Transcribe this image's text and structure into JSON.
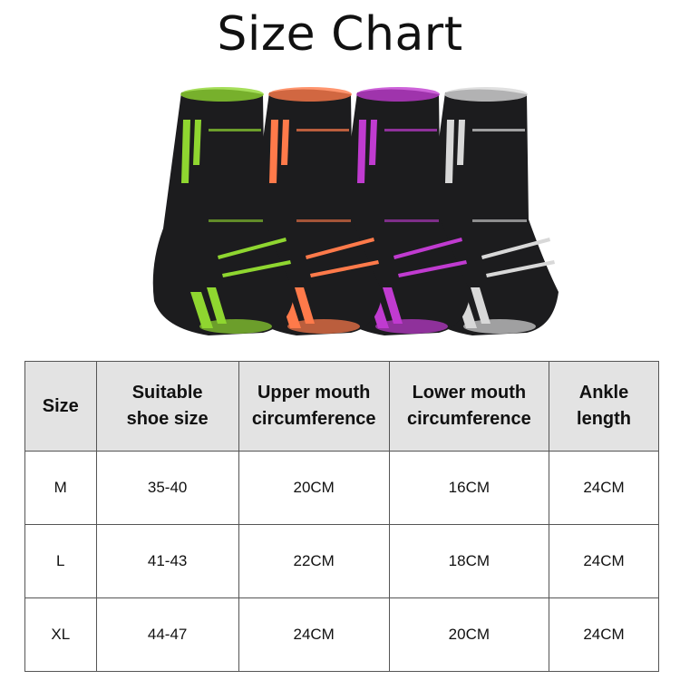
{
  "title": "Size Chart",
  "product": {
    "name_icon": "ankle-sleeve-image",
    "colors": [
      "#8fd630",
      "#ff7a4a",
      "#c03bd0",
      "#d8d8d8"
    ]
  },
  "table": {
    "headers": [
      "Size",
      "Suitable shoe size",
      "Upper mouth circumference",
      "Lower mouth circumference",
      "Ankle length"
    ],
    "rows": [
      [
        "M",
        "35-40",
        "20CM",
        "16CM",
        "24CM"
      ],
      [
        "L",
        "41-43",
        "22CM",
        "18CM",
        "24CM"
      ],
      [
        "XL",
        "44-47",
        "24CM",
        "20CM",
        "24CM"
      ]
    ]
  }
}
